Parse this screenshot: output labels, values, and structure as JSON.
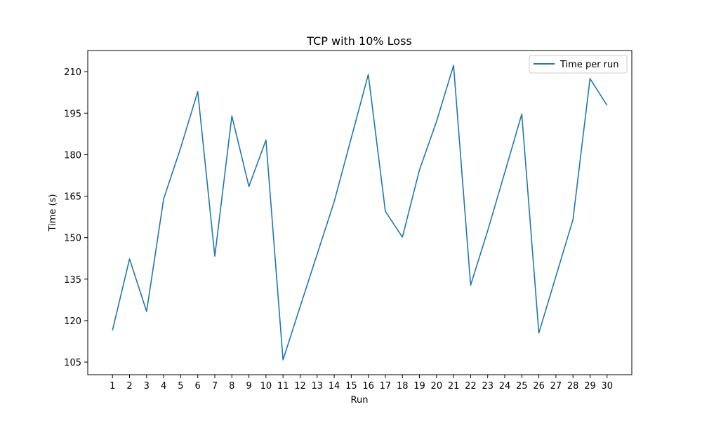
{
  "chart_data": {
    "type": "line",
    "title": "TCP with 10% Loss",
    "xlabel": "Run",
    "ylabel": "Time (s)",
    "x": [
      1,
      2,
      3,
      4,
      5,
      6,
      7,
      8,
      9,
      10,
      11,
      12,
      13,
      14,
      15,
      16,
      17,
      18,
      19,
      20,
      21,
      22,
      23,
      24,
      25,
      26,
      27,
      28,
      29,
      30
    ],
    "series": [
      {
        "name": "Time per run",
        "color": "#1f77b4",
        "values": [
          116.5,
          142.3,
          123.3,
          164.0,
          182.5,
          202.8,
          143.3,
          194.0,
          168.5,
          185.3,
          105.8,
          125.0,
          144.0,
          163.0,
          186.0,
          209.0,
          159.5,
          150.2,
          174.5,
          192.0,
          212.3,
          132.8,
          152.5,
          173.5,
          194.7,
          115.5,
          136.0,
          156.5,
          207.5,
          197.8
        ]
      }
    ],
    "xticks": [
      "1",
      "2",
      "3",
      "4",
      "5",
      "6",
      "7",
      "8",
      "9",
      "10",
      "11",
      "12",
      "13",
      "14",
      "15",
      "16",
      "17",
      "18",
      "19",
      "20",
      "21",
      "22",
      "23",
      "24",
      "25",
      "26",
      "27",
      "28",
      "29",
      "30"
    ],
    "yticks": [
      105,
      120,
      135,
      150,
      165,
      180,
      195,
      210
    ],
    "xlim": [
      -0.45,
      31.45
    ],
    "ylim": [
      100.45,
      217.65
    ],
    "legend_position": "top-right",
    "grid": false
  }
}
